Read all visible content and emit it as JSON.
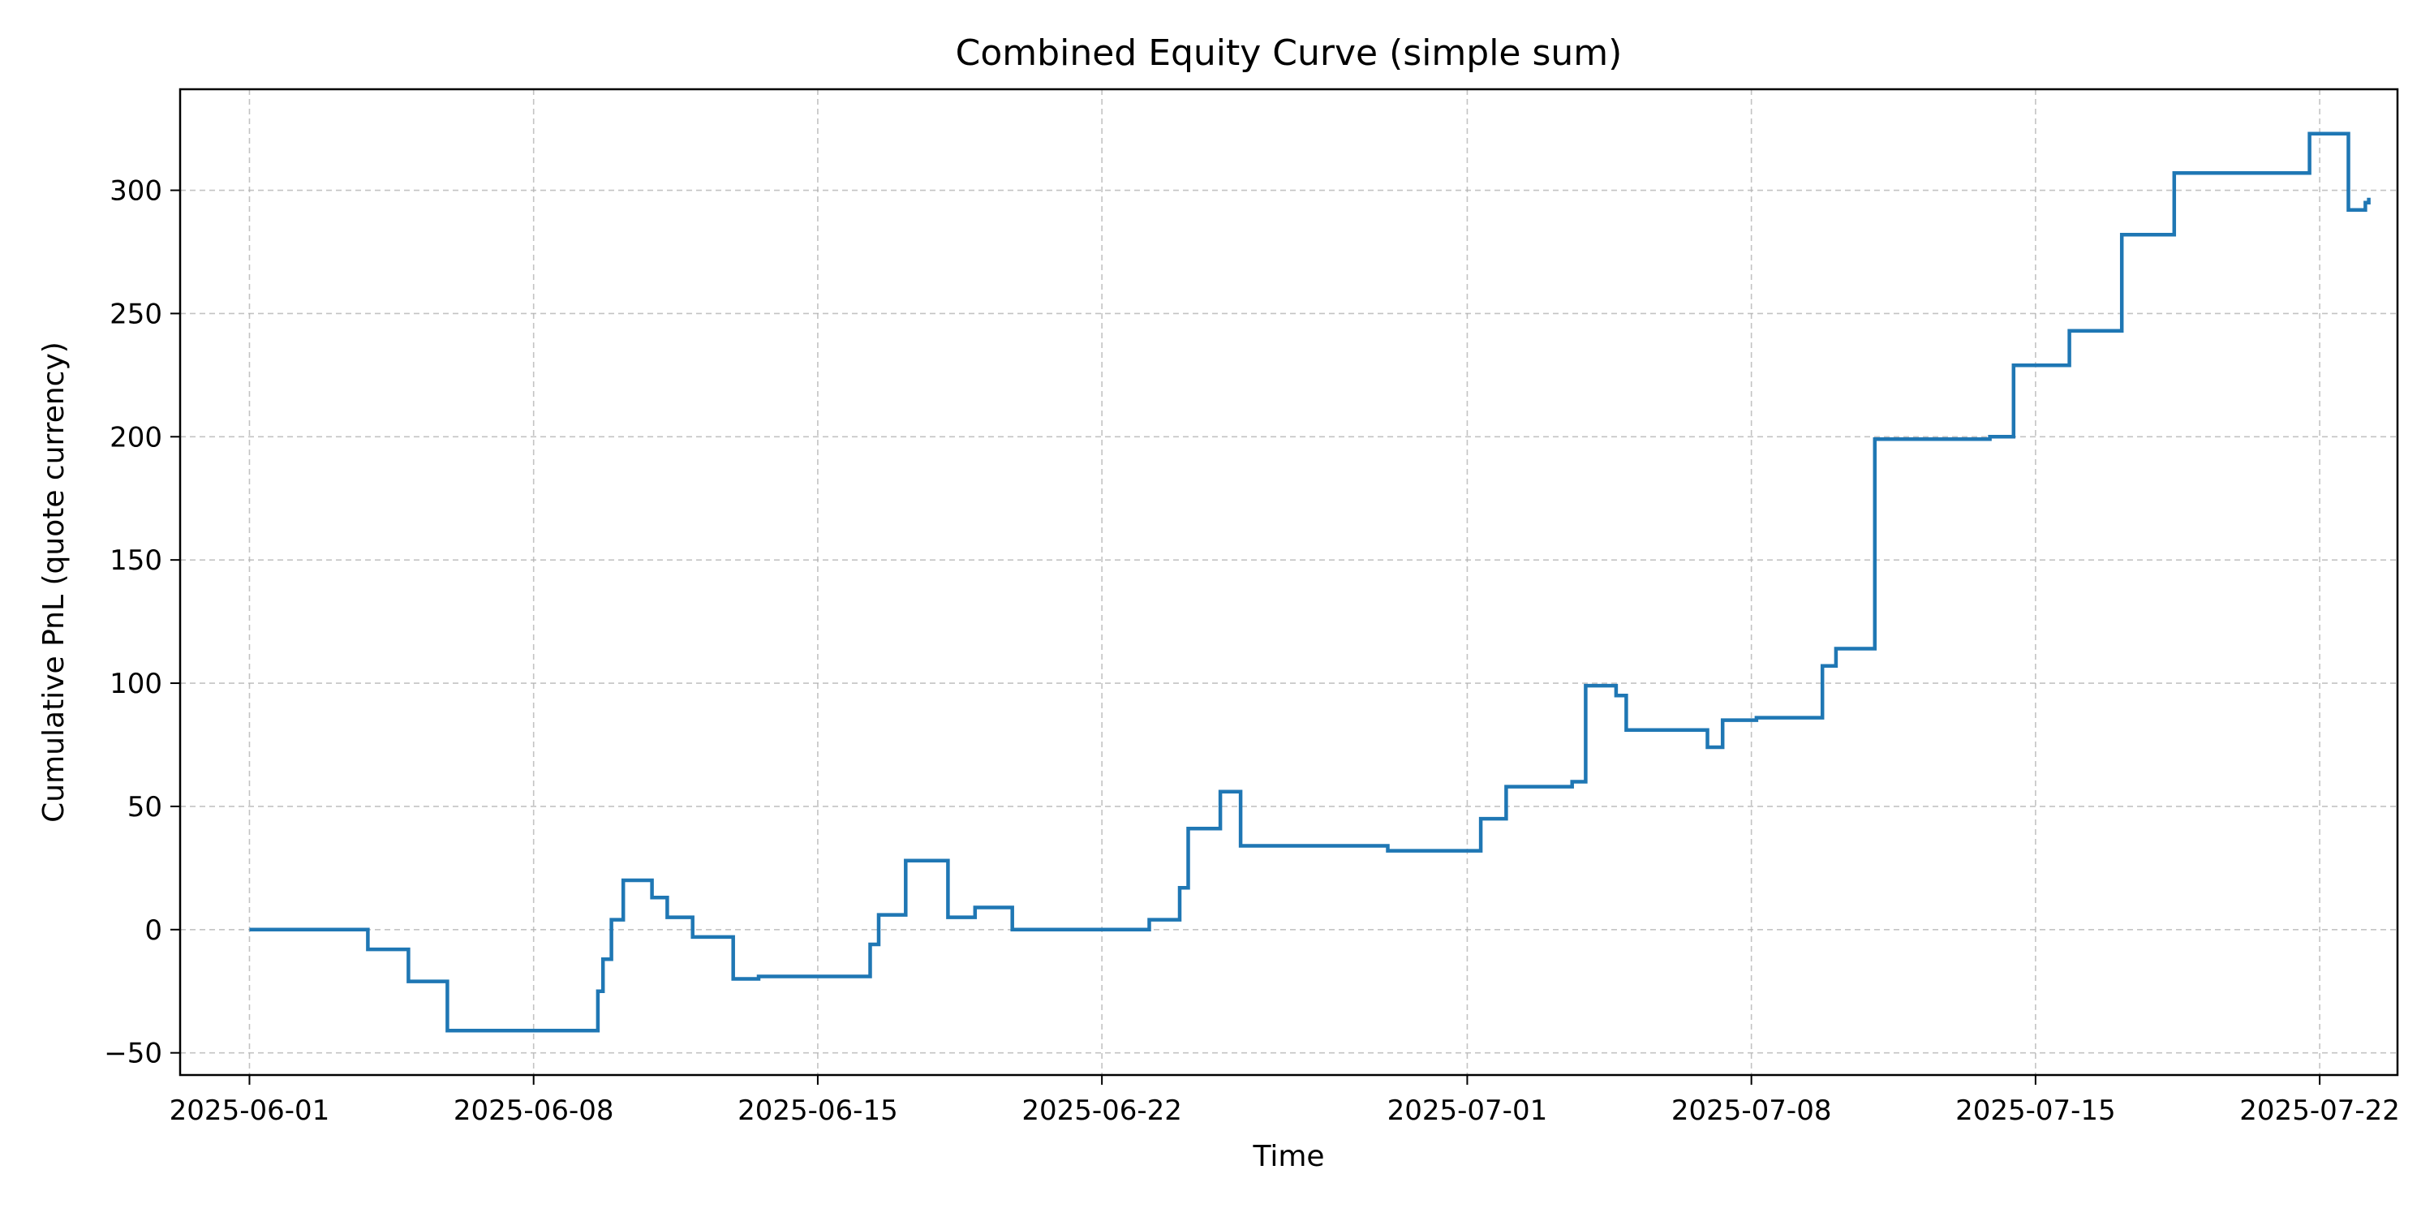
{
  "chart_data": {
    "type": "line",
    "title": "Combined Equity Curve (simple sum)",
    "xlabel": "Time",
    "ylabel": "Cumulative PnL (quote currency)",
    "x_axis_type": "date",
    "xlim": [
      "2025-05-30T07:00",
      "2025-07-23T22:00"
    ],
    "ylim": [
      -59,
      341
    ],
    "x_ticks": [
      "2025-06-01",
      "2025-06-08",
      "2025-06-15",
      "2025-06-22",
      "2025-07-01",
      "2025-07-08",
      "2025-07-15",
      "2025-07-22"
    ],
    "y_ticks": [
      -50,
      0,
      50,
      100,
      150,
      200,
      250,
      300
    ],
    "y_tick_labels": [
      "−50",
      "0",
      "50",
      "100",
      "150",
      "200",
      "250",
      "300"
    ],
    "grid": true,
    "line_style": "step",
    "series": [
      {
        "color": "#1f77b4",
        "points": [
          [
            "2025-06-01T00:00",
            0
          ],
          [
            "2025-06-03T22:00",
            -8
          ],
          [
            "2025-06-04T22:00",
            -21
          ],
          [
            "2025-06-05T21:00",
            -41
          ],
          [
            "2025-06-09T14:00",
            -25
          ],
          [
            "2025-06-09T17:00",
            -12
          ],
          [
            "2025-06-09T22:00",
            4
          ],
          [
            "2025-06-10T05:00",
            20
          ],
          [
            "2025-06-10T22:00",
            13
          ],
          [
            "2025-06-11T07:00",
            5
          ],
          [
            "2025-06-11T22:00",
            -3
          ],
          [
            "2025-06-12T22:00",
            -20
          ],
          [
            "2025-06-13T13:00",
            -19
          ],
          [
            "2025-06-16T07:00",
            -6
          ],
          [
            "2025-06-16T12:00",
            6
          ],
          [
            "2025-06-17T04:00",
            28
          ],
          [
            "2025-06-18T05:00",
            5
          ],
          [
            "2025-06-18T21:00",
            9
          ],
          [
            "2025-06-19T19:00",
            0
          ],
          [
            "2025-06-23T04:00",
            4
          ],
          [
            "2025-06-23T22:00",
            17
          ],
          [
            "2025-06-24T03:00",
            41
          ],
          [
            "2025-06-24T22:00",
            56
          ],
          [
            "2025-06-25T10:00",
            34
          ],
          [
            "2025-06-29T01:00",
            32
          ],
          [
            "2025-07-01T08:00",
            45
          ],
          [
            "2025-07-01T23:00",
            58
          ],
          [
            "2025-07-03T14:00",
            60
          ],
          [
            "2025-07-03T22:00",
            99
          ],
          [
            "2025-07-04T16:00",
            95
          ],
          [
            "2025-07-04T22:00",
            81
          ],
          [
            "2025-07-06T22:00",
            74
          ],
          [
            "2025-07-07T07:00",
            85
          ],
          [
            "2025-07-08T03:00",
            86
          ],
          [
            "2025-07-09T18:00",
            107
          ],
          [
            "2025-07-10T02:00",
            114
          ],
          [
            "2025-07-11T01:00",
            199
          ],
          [
            "2025-07-13T21:00",
            200
          ],
          [
            "2025-07-14T11:00",
            229
          ],
          [
            "2025-07-15T20:00",
            243
          ],
          [
            "2025-07-17T03:00",
            282
          ],
          [
            "2025-07-18T10:00",
            307
          ],
          [
            "2025-07-21T18:00",
            323
          ],
          [
            "2025-07-22T17:00",
            292
          ],
          [
            "2025-07-23T03:00",
            295
          ],
          [
            "2025-07-23T05:00",
            297
          ]
        ]
      }
    ]
  }
}
